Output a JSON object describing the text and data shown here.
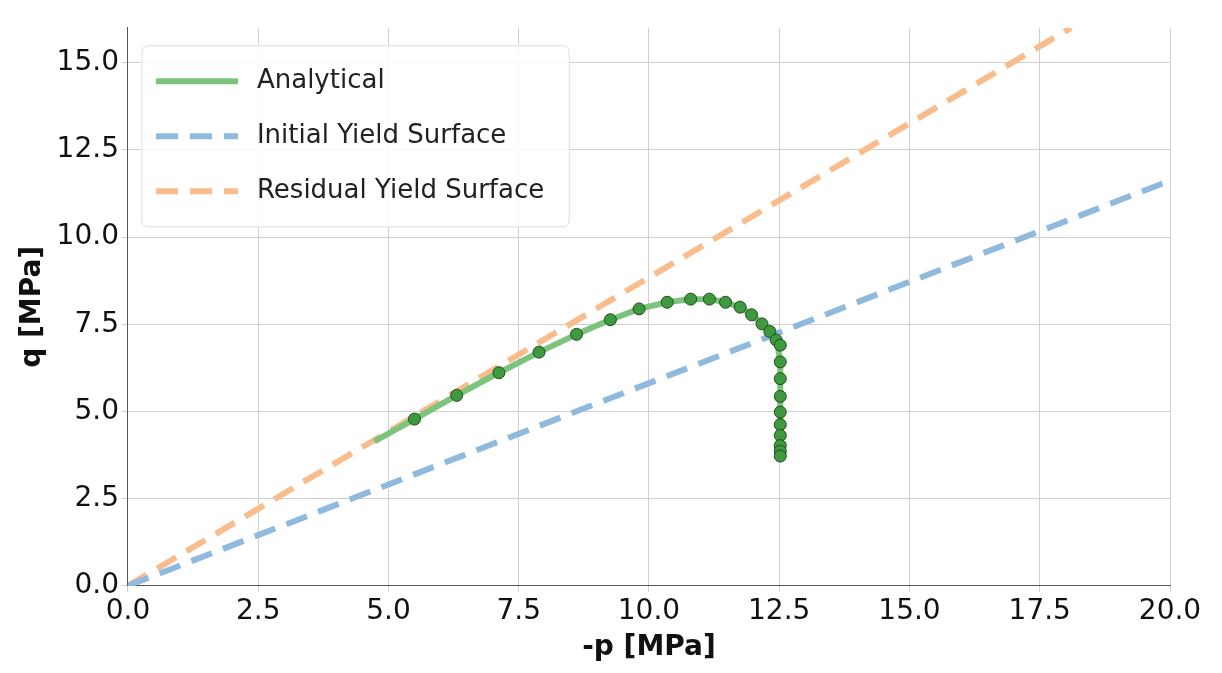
{
  "chart_data": {
    "type": "line",
    "xlabel": "-p [MPa]",
    "ylabel": "q [MPa]",
    "xlim": [
      0,
      20
    ],
    "ylim": [
      0,
      16
    ],
    "xticks": [
      {
        "value": 0,
        "label": "0.0"
      },
      2.5,
      {
        "value": 5,
        "label": "5.0"
      },
      7.5,
      {
        "value": 10,
        "label": "10.0"
      },
      12.5,
      {
        "value": 15,
        "label": "15.0"
      },
      17.5,
      {
        "value": 20,
        "label": "20.0"
      }
    ],
    "yticks": [
      {
        "value": 0,
        "label": "0.0"
      },
      2.5,
      {
        "value": 5,
        "label": "5.0"
      },
      7.5,
      {
        "value": 10,
        "label": "10.0"
      },
      12.5,
      {
        "value": 15,
        "label": "15.0"
      }
    ],
    "grid": true,
    "legend": "top left",
    "series": [
      {
        "name": "Analytical",
        "color": "#7cc47c",
        "line_style": "solid",
        "marker": "none",
        "x": [
          4.73,
          5.5,
          6.31,
          7.12,
          7.89,
          8.61,
          9.26,
          9.81,
          10.35,
          10.8,
          11.16,
          11.47,
          11.75,
          11.97,
          12.17,
          12.35,
          12.47,
          12.52,
          12.52
        ],
        "values": [
          4.14,
          4.78,
          5.46,
          6.11,
          6.7,
          7.21,
          7.63,
          7.94,
          8.13,
          8.22,
          8.22,
          8.13,
          7.99,
          7.77,
          7.51,
          7.25,
          6.9,
          6.4,
          3.72
        ]
      },
      {
        "type": "scatter",
        "color": "#3f9a3f",
        "marker": "circle",
        "x": [
          5.5,
          6.31,
          7.12,
          7.89,
          8.61,
          9.26,
          9.81,
          10.35,
          10.8,
          11.16,
          11.47,
          11.75,
          11.97,
          12.17,
          12.32,
          12.44,
          12.52,
          12.52,
          12.52,
          12.52,
          12.52,
          12.52,
          12.52,
          12.52,
          12.52,
          12.52
        ],
        "values": [
          4.78,
          5.46,
          6.11,
          6.7,
          7.21,
          7.63,
          7.94,
          8.13,
          8.22,
          8.22,
          8.13,
          7.99,
          7.77,
          7.51,
          7.29,
          7.05,
          6.9,
          6.42,
          5.94,
          5.43,
          4.98,
          4.62,
          4.31,
          4.02,
          3.86,
          3.72
        ]
      },
      {
        "name": "Initial Yield Surface",
        "color": "#8fb9dd",
        "line_style": "dashed",
        "marker": "none",
        "x": [
          0,
          20
        ],
        "values": [
          0,
          11.62
        ]
      },
      {
        "name": "Residual Yield Surface",
        "color": "#f9bc8c",
        "line_style": "dashed",
        "marker": "none",
        "x": [
          0,
          18.1
        ],
        "values": [
          0,
          16
        ]
      }
    ]
  }
}
